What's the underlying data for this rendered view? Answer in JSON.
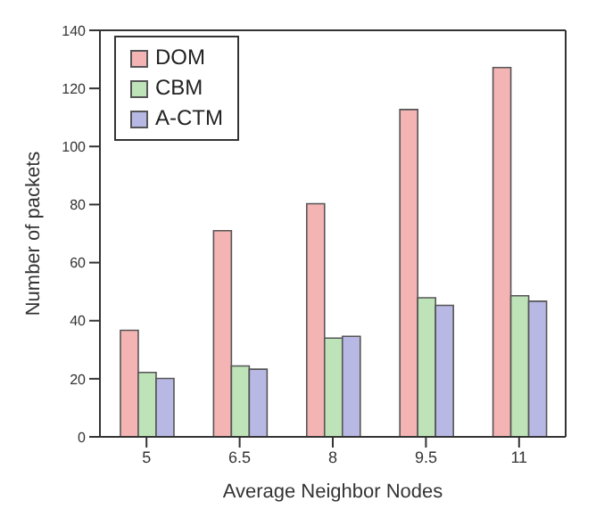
{
  "chart_data": {
    "type": "bar",
    "xlabel": "Average Neighbor Nodes",
    "ylabel": "Number of packets",
    "categories": [
      "5",
      "6.5",
      "8",
      "9.5",
      "11"
    ],
    "series": [
      {
        "name": "DOM",
        "color": "#f4b4b4",
        "values": [
          36.7,
          71,
          80.3,
          112.7,
          127.2
        ]
      },
      {
        "name": "CBM",
        "color": "#bfe3b8",
        "values": [
          22.2,
          24.4,
          34,
          47.9,
          48.6
        ]
      },
      {
        "name": "A-CTM",
        "color": "#b8b8e4",
        "values": [
          20.1,
          23.3,
          34.6,
          45.3,
          46.7
        ]
      }
    ],
    "ylim": [
      0,
      140
    ],
    "yticks": [
      0,
      20,
      40,
      60,
      80,
      100,
      120,
      140
    ],
    "grid": false,
    "legend": "top left"
  }
}
